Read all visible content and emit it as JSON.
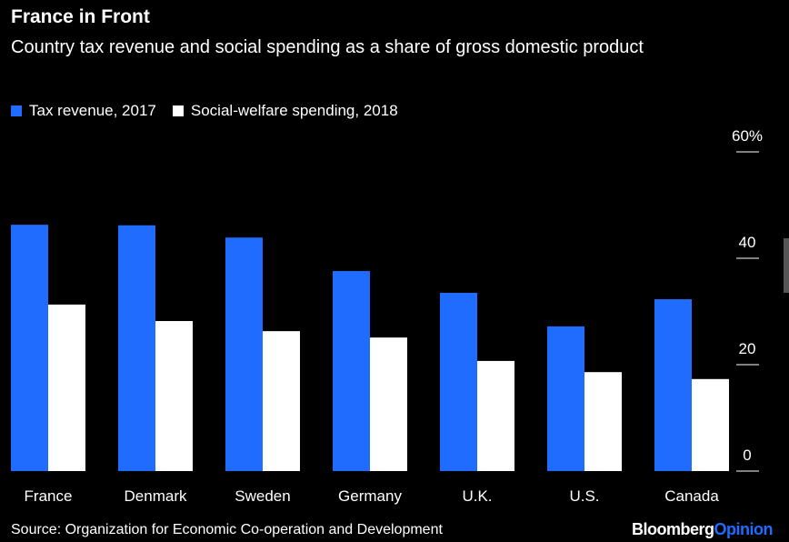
{
  "chart_data": {
    "type": "bar",
    "title": "France in Front",
    "subtitle": "Country tax revenue and social spending as a share of gross domestic product",
    "categories": [
      "France",
      "Denmark",
      "Sweden",
      "Germany",
      "U.K.",
      "U.S.",
      "Canada"
    ],
    "series": [
      {
        "name": "Tax revenue, 2017",
        "color": "#1f6cff",
        "values": [
          46.3,
          46.2,
          43.9,
          37.6,
          33.5,
          27.2,
          32.3
        ]
      },
      {
        "name": "Social-welfare spending, 2018",
        "color": "#ffffff",
        "values": [
          31.3,
          28.2,
          26.3,
          25.1,
          20.7,
          18.6,
          17.3
        ]
      }
    ],
    "ylim": [
      0,
      60
    ],
    "yticks": [
      0,
      20,
      40,
      {
        "value": 60,
        "label": "60%"
      }
    ],
    "source": "Source: Organization for Economic Co-operation and Development",
    "brand": [
      "Bloomberg",
      "Opinion"
    ]
  }
}
